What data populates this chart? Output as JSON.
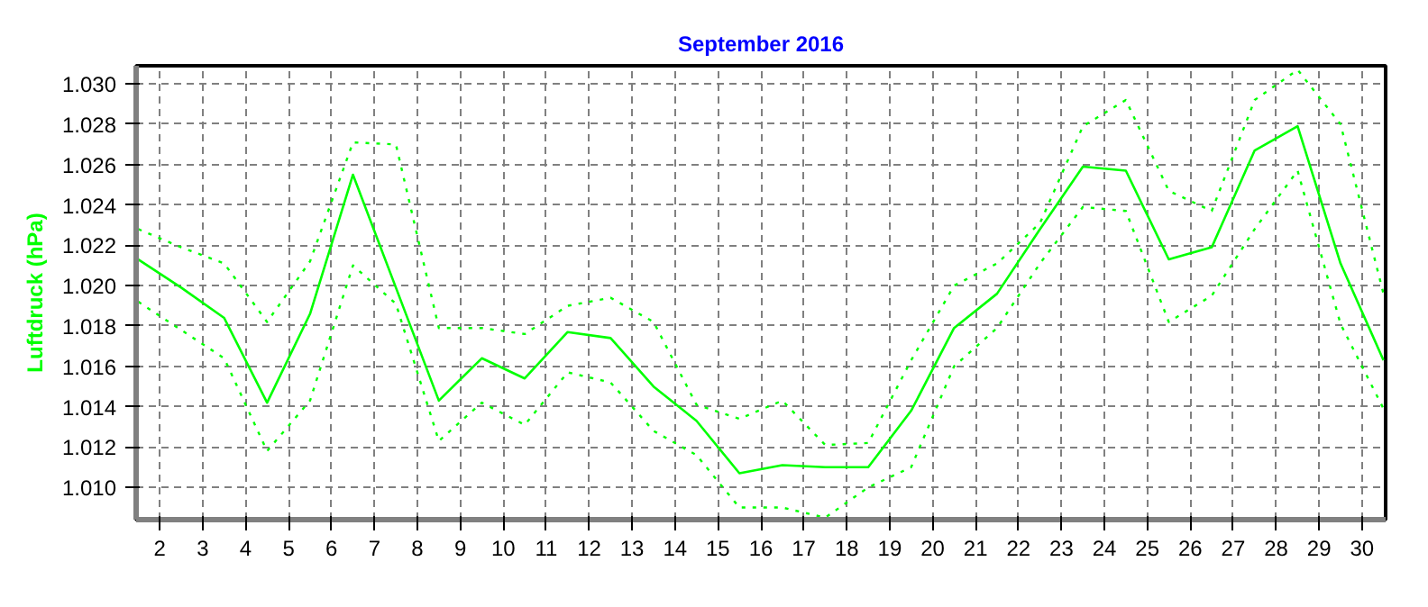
{
  "chart_data": {
    "type": "line",
    "title": "September 2016",
    "ylabel": "Luftdruck (hPa)",
    "x": [
      1.5,
      2.5,
      3.5,
      4.5,
      5.5,
      6.5,
      7.5,
      8.5,
      9.5,
      10.5,
      11.5,
      12.5,
      13.5,
      14.5,
      15.5,
      16.5,
      17.5,
      18.5,
      19.5,
      20.5,
      21.5,
      22.5,
      23.5,
      24.5,
      25.5,
      26.5,
      27.5,
      28.5,
      29.5,
      30.5
    ],
    "series": [
      {
        "color": "#00ff00",
        "line_style": "dotted",
        "values": [
          1.0228,
          1.0219,
          1.0211,
          1.0182,
          1.0212,
          1.0271,
          1.027,
          1.0179,
          1.0179,
          1.0176,
          1.019,
          1.0194,
          1.0182,
          1.0141,
          1.0134,
          1.0143,
          1.0121,
          1.0122,
          1.0163,
          1.02,
          1.0211,
          1.0231,
          1.0279,
          1.0292,
          1.0247,
          1.0237,
          1.0292,
          1.0307,
          1.028,
          1.0196
        ]
      },
      {
        "color": "#00ff00",
        "line_style": "solid",
        "values": [
          1.0213,
          1.0199,
          1.0184,
          1.0142,
          1.0186,
          1.0255,
          1.0199,
          1.0143,
          1.0164,
          1.0154,
          1.0177,
          1.0174,
          1.015,
          1.0133,
          1.0107,
          1.0111,
          1.011,
          1.011,
          1.0138,
          1.0179,
          1.0196,
          1.0228,
          1.0259,
          1.0257,
          1.0213,
          1.0219,
          1.0267,
          1.0279,
          1.0211,
          1.0163
        ]
      },
      {
        "color": "#00ff00",
        "line_style": "dotted",
        "values": [
          1.0192,
          1.0178,
          1.0164,
          1.0118,
          1.0143,
          1.021,
          1.0191,
          1.0123,
          1.0142,
          1.0131,
          1.0157,
          1.0152,
          1.0128,
          1.0116,
          1.009,
          1.009,
          1.0085,
          1.01,
          1.011,
          1.016,
          1.0179,
          1.0211,
          1.0239,
          1.0237,
          1.0182,
          1.0195,
          1.0228,
          1.0257,
          1.0181,
          1.0139
        ]
      }
    ],
    "xlim": [
      1.45,
      30.55
    ],
    "xticks": [
      2,
      3,
      4,
      5,
      6,
      7,
      8,
      9,
      10,
      11,
      12,
      13,
      14,
      15,
      16,
      17,
      18,
      19,
      20,
      21,
      22,
      23,
      24,
      25,
      26,
      27,
      28,
      29,
      30
    ],
    "ylim": [
      1.0084,
      1.0309
    ],
    "yticks": [
      {
        "value": 1.01,
        "label": "1.010"
      },
      {
        "value": 1.012,
        "label": "1.012"
      },
      {
        "value": 1.014,
        "label": "1.014"
      },
      {
        "value": 1.016,
        "label": "1.016"
      },
      {
        "value": 1.018,
        "label": "1.018"
      },
      {
        "value": 1.02,
        "label": "1.020"
      },
      {
        "value": 1.022,
        "label": "1.022"
      },
      {
        "value": 1.024,
        "label": "1.024"
      },
      {
        "value": 1.026,
        "label": "1.026"
      },
      {
        "value": 1.028,
        "label": "1.028"
      },
      {
        "value": 1.03,
        "label": "1.030"
      }
    ],
    "grid": true,
    "marker": "none"
  }
}
